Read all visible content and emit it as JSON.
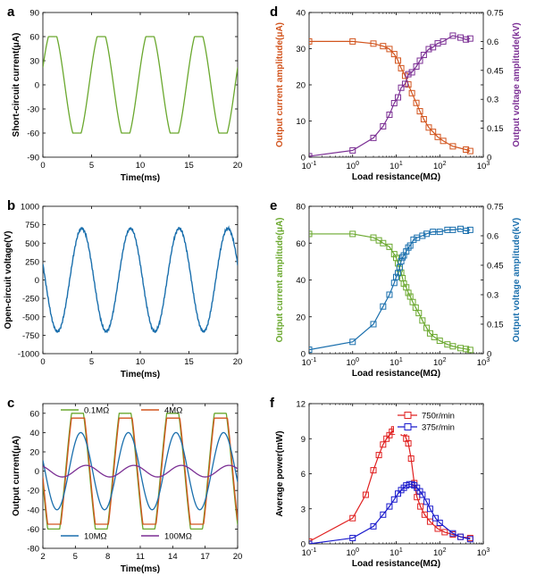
{
  "colors": {
    "green": "#6aa82e",
    "blue": "#1a6fad",
    "orange": "#d2541d",
    "red": "#7b2f94",
    "purple": "#7b2f94",
    "brightred": "#e02020",
    "navy": "#1a1acc",
    "c_green": "#6aa82e",
    "c_orange": "#d2541d",
    "c_blue": "#1a6fad",
    "c_purple": "#7b2f94"
  },
  "chart_data": [
    {
      "id": "a",
      "type": "line",
      "letter": "a",
      "xlabel": "Time(ms)",
      "ylabel": "Short-circuit current(μA)",
      "xlim": [
        0,
        20
      ],
      "ylim": [
        -90,
        90
      ],
      "xticks": [
        "0",
        "5",
        "10",
        "15",
        "20"
      ],
      "yticks": [
        "-90",
        "-60",
        "-30",
        "0",
        "30",
        "60",
        "90"
      ],
      "series": [
        {
          "color": "green",
          "waveform": "clipped_sine",
          "period_ms": 5,
          "amplitude": 60,
          "clip": 60,
          "peak_at_ms": [
            1,
            6,
            11,
            16
          ]
        }
      ]
    },
    {
      "id": "b",
      "type": "line",
      "letter": "b",
      "xlabel": "Time(ms)",
      "ylabel": "Open-circuit voltage(V)",
      "xlim": [
        0,
        20
      ],
      "ylim": [
        -1000,
        1000
      ],
      "xticks": [
        "0",
        "5",
        "10",
        "15",
        "20"
      ],
      "yticks": [
        "-1000",
        "-750",
        "-500",
        "-250",
        "0",
        "250",
        "500",
        "750",
        "1000"
      ],
      "series": [
        {
          "color": "blue",
          "waveform": "sine",
          "period_ms": 5,
          "amplitude": 700,
          "peak_at_ms": [
            4,
            9,
            14,
            19
          ]
        }
      ]
    },
    {
      "id": "c",
      "type": "line",
      "letter": "c",
      "xlabel": "Time(ms)",
      "ylabel": "Output current(μA)",
      "xlim": [
        2,
        20
      ],
      "ylim": [
        -80,
        70
      ],
      "xticks": [
        "2",
        "5",
        "8",
        "11",
        "14",
        "17",
        "20"
      ],
      "yticks": [
        "-80",
        "-60",
        "-40",
        "-20",
        "0",
        "20",
        "40",
        "60"
      ],
      "series": [
        {
          "name": "0.1MΩ",
          "color": "c_green",
          "amplitude": 60,
          "clip": 60,
          "period_ms": 4.4,
          "phase": -0.2
        },
        {
          "name": "4MΩ",
          "color": "c_orange",
          "amplitude": 58,
          "clip": 55,
          "period_ms": 4.4,
          "phase": -0.15
        },
        {
          "name": "10MΩ",
          "color": "c_blue",
          "amplitude": 40,
          "period_ms": 4.4,
          "phase": 0.1
        },
        {
          "name": "100MΩ",
          "color": "c_purple",
          "amplitude": 6,
          "period_ms": 4.4,
          "phase": 0.6
        }
      ]
    },
    {
      "id": "d",
      "type": "line",
      "letter": "d",
      "xlabel": "Load resistance(MΩ)",
      "ylabel": "Output current amplitude(μA)",
      "y2label": "Output voltage amplitude(kV)",
      "xscale": "log",
      "xlim": [
        0.1,
        1000
      ],
      "ylim": [
        0,
        40
      ],
      "y2lim": [
        0,
        0.75
      ],
      "xticks": [
        "10-1",
        "100",
        "101",
        "102",
        "103"
      ],
      "yticks": [
        "0",
        "10",
        "20",
        "30",
        "40"
      ],
      "y2ticks": [
        "0",
        "0.15",
        "0.3",
        "0.45",
        "0.6",
        "0.75"
      ],
      "series": [
        {
          "name": "Output current amplitude",
          "color": "orange",
          "axis": "left",
          "x": [
            0.1,
            1,
            3,
            5,
            7,
            9,
            11,
            13,
            16,
            19,
            23,
            29,
            35,
            43,
            56,
            70,
            90,
            120,
            200,
            400,
            500
          ],
          "y": [
            32,
            32,
            31.4,
            30.7,
            29.9,
            28.5,
            26.7,
            24.6,
            22.5,
            20.1,
            17.7,
            15,
            12.7,
            10.5,
            8.2,
            7,
            5.6,
            4.5,
            3,
            2.1,
            1.7
          ]
        },
        {
          "name": "Output voltage amplitude",
          "color": "purple",
          "axis": "right",
          "x": [
            0.1,
            1,
            3,
            5,
            7,
            9,
            11,
            13,
            16,
            19,
            23,
            29,
            35,
            43,
            56,
            70,
            90,
            120,
            200,
            300,
            400,
            500
          ],
          "y": [
            0.005,
            0.035,
            0.1,
            0.16,
            0.22,
            0.28,
            0.31,
            0.36,
            0.38,
            0.43,
            0.44,
            0.47,
            0.5,
            0.53,
            0.56,
            0.57,
            0.59,
            0.6,
            0.63,
            0.62,
            0.61,
            0.615
          ]
        }
      ]
    },
    {
      "id": "e",
      "type": "line",
      "letter": "e",
      "xlabel": "Load resistance(MΩ)",
      "ylabel": "Output current amplitude(μA)",
      "y2label": "Output voltage amplitude(kV)",
      "xscale": "log",
      "xlim": [
        0.1,
        1000
      ],
      "ylim": [
        0,
        80
      ],
      "y2lim": [
        0,
        0.75
      ],
      "xticks": [
        "10-1",
        "100",
        "101",
        "102",
        "103"
      ],
      "yticks": [
        "0",
        "20",
        "40",
        "60",
        "80"
      ],
      "y2ticks": [
        "0",
        "0.15",
        "0.3",
        "0.45",
        "0.6",
        "0.75"
      ],
      "series": [
        {
          "name": "Output current amplitude",
          "color": "green",
          "axis": "left",
          "x": [
            0.1,
            1,
            3,
            4,
            5,
            7,
            9,
            10,
            11,
            12,
            13,
            14,
            15,
            17,
            19,
            21,
            24,
            28,
            33,
            40,
            50,
            60,
            75,
            100,
            150,
            200,
            300,
            400,
            500
          ],
          "y": [
            65,
            65,
            63,
            61.5,
            60,
            58,
            54,
            52,
            49,
            46,
            44,
            41,
            38,
            36,
            33,
            31,
            28,
            25,
            22,
            18,
            14,
            11,
            9,
            7,
            5,
            4,
            3,
            2.5,
            2
          ]
        },
        {
          "name": "Output voltage amplitude",
          "color": "blue",
          "axis": "right",
          "x": [
            0.1,
            1,
            3,
            5,
            7,
            9,
            10,
            11,
            12,
            13,
            14,
            15,
            17,
            19,
            21,
            25,
            30,
            40,
            50,
            70,
            100,
            150,
            200,
            300,
            400,
            500
          ],
          "y": [
            0.02,
            0.06,
            0.15,
            0.24,
            0.3,
            0.36,
            0.39,
            0.41,
            0.44,
            0.47,
            0.49,
            0.5,
            0.52,
            0.54,
            0.55,
            0.58,
            0.59,
            0.6,
            0.61,
            0.62,
            0.62,
            0.63,
            0.63,
            0.635,
            0.625,
            0.63
          ]
        }
      ]
    },
    {
      "id": "f",
      "type": "line",
      "letter": "f",
      "xlabel": "Load resistance(MΩ)",
      "ylabel": "Average power(mW)",
      "xscale": "log",
      "xlim": [
        0.1,
        1000
      ],
      "ylim": [
        0,
        12
      ],
      "xticks": [
        "10-1",
        "100",
        "101",
        "102",
        "103"
      ],
      "yticks": [
        "0",
        "3",
        "6",
        "9",
        "12"
      ],
      "legend": "top-right",
      "series": [
        {
          "name": "750r/min",
          "color": "brightred",
          "x": [
            0.1,
            1,
            2,
            3,
            4,
            5,
            6,
            7,
            8,
            9,
            10,
            11,
            12,
            13,
            14,
            15,
            17,
            19,
            22,
            26,
            30,
            36,
            45,
            60,
            90,
            130,
            200,
            300,
            500
          ],
          "y": [
            0.2,
            2.2,
            4.2,
            6.3,
            7.6,
            8.5,
            9,
            9.3,
            9.6,
            9.8,
            9.8,
            10,
            9.9,
            9.8,
            10,
            9.5,
            9,
            8.6,
            7.3,
            5.2,
            4,
            3.2,
            2.5,
            1.9,
            1.3,
            1,
            0.8,
            0.6,
            0.5
          ]
        },
        {
          "name": "375r/min",
          "color": "navy",
          "x": [
            0.1,
            1,
            3,
            5,
            7,
            9,
            11,
            13,
            15,
            17,
            20,
            23,
            26,
            30,
            35,
            40,
            50,
            60,
            80,
            100,
            200,
            300,
            500
          ],
          "y": [
            0,
            0.5,
            1.5,
            2.5,
            3.2,
            3.8,
            4.3,
            4.6,
            4.8,
            5,
            5.1,
            5.1,
            5,
            4.8,
            4.5,
            4.2,
            3.6,
            3,
            2.2,
            1.8,
            0.9,
            0.6,
            0.4
          ]
        }
      ]
    }
  ]
}
